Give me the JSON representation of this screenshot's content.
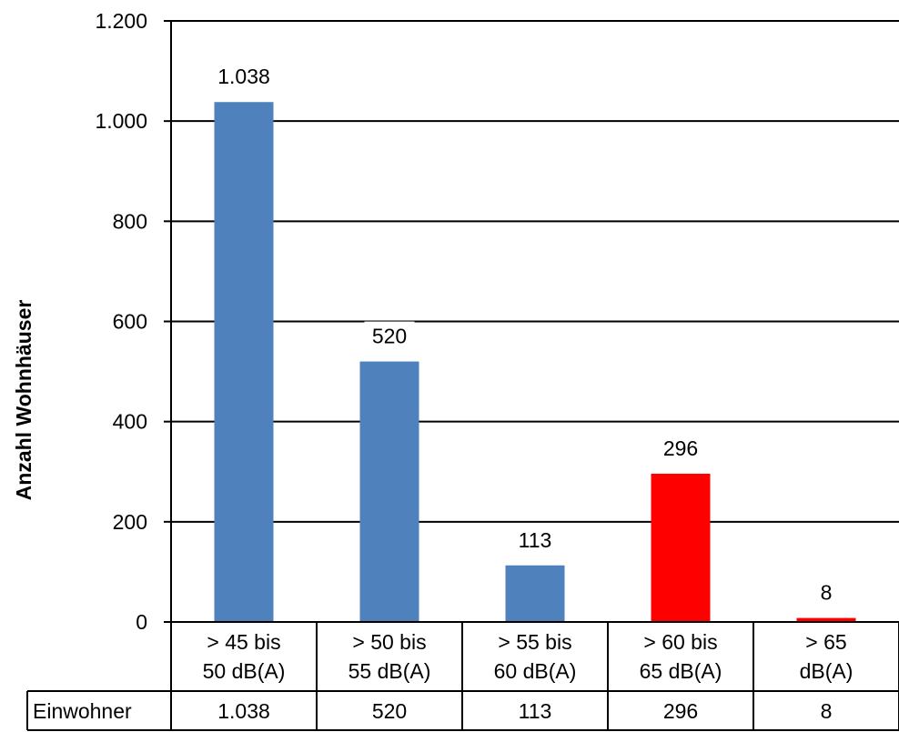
{
  "chart_data": {
    "type": "bar",
    "ylabel": "Anzahl Wohnhäuser",
    "ylim": [
      0,
      1200
    ],
    "yticks": [
      0,
      200,
      400,
      600,
      800,
      1000,
      1200
    ],
    "ytick_labels": [
      "0",
      "200",
      "400",
      "600",
      "800",
      "1.000",
      "1.200"
    ],
    "grid": true,
    "categories": [
      [
        "> 45 bis",
        "50 dB(A)"
      ],
      [
        "> 50 bis",
        "55 dB(A)"
      ],
      [
        "> 55 bis",
        "60 dB(A)"
      ],
      [
        "> 60 bis",
        "65 dB(A)"
      ],
      [
        "> 65",
        "dB(A)"
      ]
    ],
    "values": [
      1038,
      520,
      113,
      296,
      8
    ],
    "data_labels": [
      "1.038",
      "520",
      "113",
      "296",
      "8"
    ],
    "bar_colors": [
      "#4F81BD",
      "#4F81BD",
      "#4F81BD",
      "#FF0000",
      "#FF0000"
    ],
    "data_table": {
      "row_label": "Einwohner",
      "values": [
        "1.038",
        "520",
        "113",
        "296",
        "8"
      ]
    }
  }
}
